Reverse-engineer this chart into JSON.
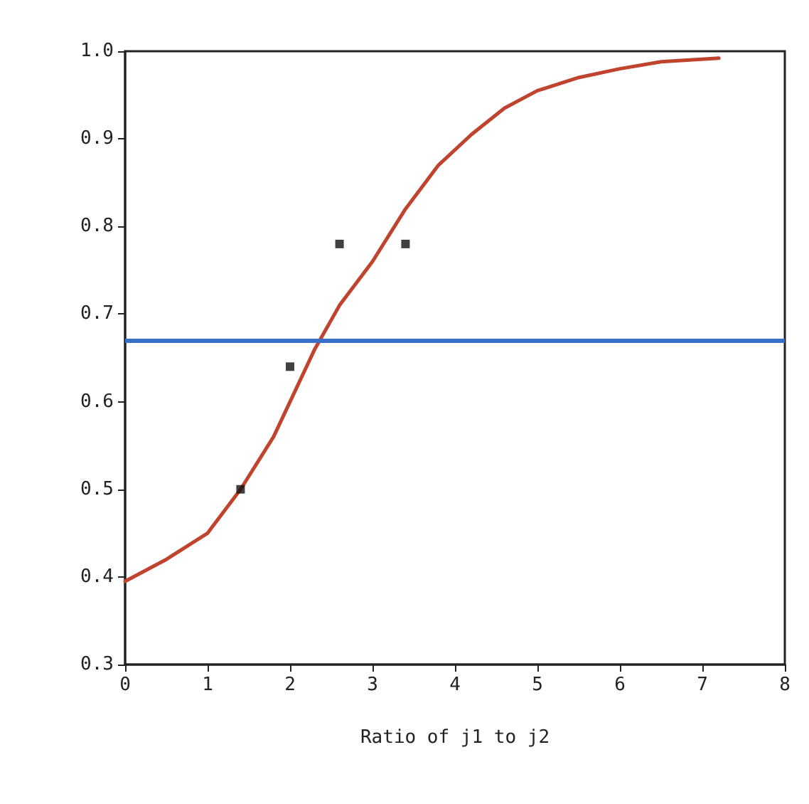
{
  "chart_data": {
    "type": "line",
    "xlabel": "Ratio of j1 to j2",
    "xlim": [
      0,
      8
    ],
    "xticks": [
      0,
      1,
      2,
      3,
      4,
      5,
      6,
      7,
      8
    ],
    "ylim": [
      0.3,
      1.0
    ],
    "yticks": [
      {
        "value": 0.3,
        "label": "0.3"
      },
      {
        "value": 0.4,
        "label": "0.4"
      },
      {
        "value": 0.5,
        "label": "0.5"
      },
      {
        "value": 0.6,
        "label": "0.6"
      },
      {
        "value": 0.7,
        "label": "0.7"
      },
      {
        "value": 0.8,
        "label": "0.8"
      },
      {
        "value": 0.9,
        "label": "0.9"
      },
      {
        "value": 1.0,
        "label": "1.0"
      }
    ],
    "grid": false,
    "series": [
      {
        "color": "#c0432e",
        "marker": "none",
        "line_style": "solid",
        "x": [
          0,
          0.5,
          1,
          1.4,
          1.8,
          2,
          2.3,
          2.6,
          3,
          3.4,
          3.8,
          4.2,
          4.6,
          5,
          5.5,
          6,
          6.5,
          7.2
        ],
        "values": [
          0.395,
          0.42,
          0.45,
          0.5,
          0.56,
          0.6,
          0.66,
          0.71,
          0.76,
          0.82,
          0.87,
          0.905,
          0.935,
          0.955,
          0.97,
          0.98,
          0.988,
          0.992
        ]
      },
      {
        "type": "scatter",
        "color": "#111111",
        "marker": "square",
        "x": [
          1.4,
          2.0,
          2.6,
          3.4
        ],
        "values": [
          0.5,
          0.64,
          0.78,
          0.78
        ]
      }
    ],
    "ref_lines": [
      {
        "axis": "y",
        "value": 0.667,
        "color": "#3a6fc8",
        "line_style": "solid"
      }
    ]
  }
}
